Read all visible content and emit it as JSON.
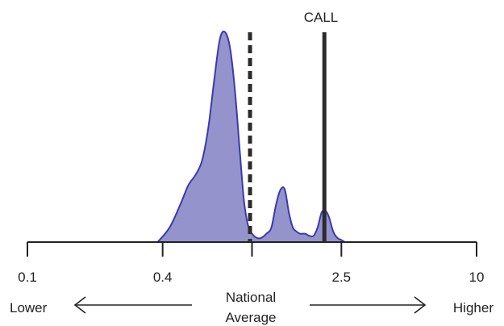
{
  "chart_data": {
    "type": "area",
    "x_scale": "log",
    "xlim": [
      0.1,
      10
    ],
    "ticks": [
      {
        "value": 0.1,
        "label": "0.1"
      },
      {
        "value": 0.4,
        "label": "0.4"
      },
      {
        "value": 1,
        "label": ""
      },
      {
        "value": 2.5,
        "label": "2.5"
      },
      {
        "value": 10,
        "label": "10"
      }
    ],
    "density": {
      "x": [
        0.38,
        0.43,
        0.48,
        0.52,
        0.56,
        0.6,
        0.64,
        0.68,
        0.72,
        0.76,
        0.8,
        0.84,
        0.88,
        0.92,
        0.96,
        1.0,
        1.05,
        1.1,
        1.16,
        1.22,
        1.28,
        1.34,
        1.4,
        1.46,
        1.52,
        1.58,
        1.64,
        1.72,
        1.8,
        1.88,
        1.96,
        2.04,
        2.12,
        2.2,
        2.3,
        2.4,
        2.5,
        2.6,
        2.7
      ],
      "y": [
        0.0,
        0.07,
        0.18,
        0.27,
        0.32,
        0.39,
        0.55,
        0.78,
        0.97,
        1.0,
        0.92,
        0.72,
        0.45,
        0.2,
        0.08,
        0.04,
        0.02,
        0.02,
        0.04,
        0.07,
        0.18,
        0.25,
        0.25,
        0.14,
        0.07,
        0.05,
        0.04,
        0.04,
        0.03,
        0.03,
        0.07,
        0.14,
        0.15,
        0.12,
        0.05,
        0.02,
        0.01,
        0.0,
        0.0
      ],
      "fill": "#9593cb",
      "stroke": "#3a3ab0"
    },
    "reference_lines": [
      {
        "x": 0.98,
        "style": "dashed",
        "label": ""
      },
      {
        "x": 2.1,
        "style": "solid",
        "label": "CALL"
      }
    ],
    "grid": false
  },
  "labels": {
    "lower": "Lower",
    "higher": "Higher",
    "national_line1": "National",
    "national_line2": "Average",
    "call": "CALL"
  },
  "colors": {
    "axis": "#222222",
    "reference": "#2b2b2b"
  }
}
